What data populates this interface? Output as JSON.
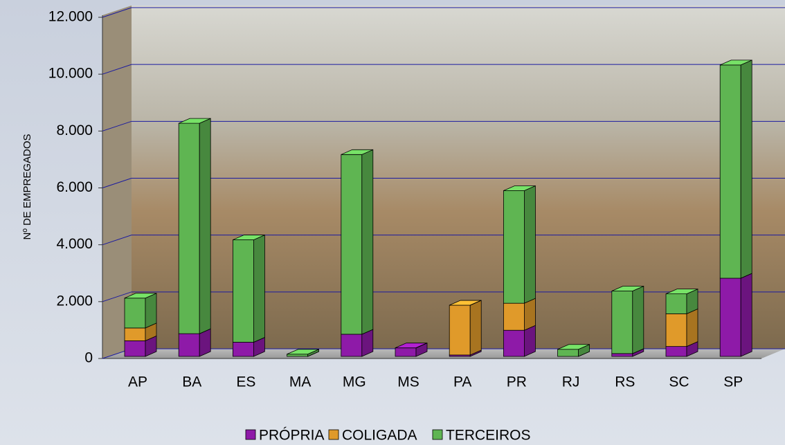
{
  "chart_data": {
    "type": "bar3d-stacked",
    "y_label": "Nº DE EMPREGADOS",
    "categories": [
      "AP",
      "BA",
      "ES",
      "MA",
      "MG",
      "MS",
      "PA",
      "PR",
      "RJ",
      "RS",
      "SC",
      "SP"
    ],
    "series": [
      {
        "name": "PRÓPRIA",
        "color": "#8e1aa8",
        "values": [
          550,
          800,
          500,
          0,
          780,
          300,
          50,
          920,
          0,
          100,
          350,
          2750
        ]
      },
      {
        "name": "COLIGADA",
        "color": "#e09a2a",
        "values": [
          450,
          0,
          0,
          0,
          0,
          0,
          1750,
          950,
          0,
          0,
          1150,
          0
        ]
      },
      {
        "name": "TERCEIROS",
        "color": "#5fb552",
        "values": [
          1050,
          7400,
          3600,
          80,
          6320,
          0,
          0,
          3960,
          250,
          2200,
          700,
          7500
        ]
      }
    ],
    "ylim": [
      0,
      12000
    ],
    "yticks": [
      0,
      {
        "value": 2000,
        "label": "2.000"
      },
      {
        "value": 4000,
        "label": "4.000"
      },
      {
        "value": 6000,
        "label": "6.000"
      },
      {
        "value": 8000,
        "label": "8.000"
      },
      {
        "value": 10000,
        "label": "10.000"
      },
      {
        "value": 12000,
        "label": "12.000"
      }
    ],
    "grid": true
  }
}
